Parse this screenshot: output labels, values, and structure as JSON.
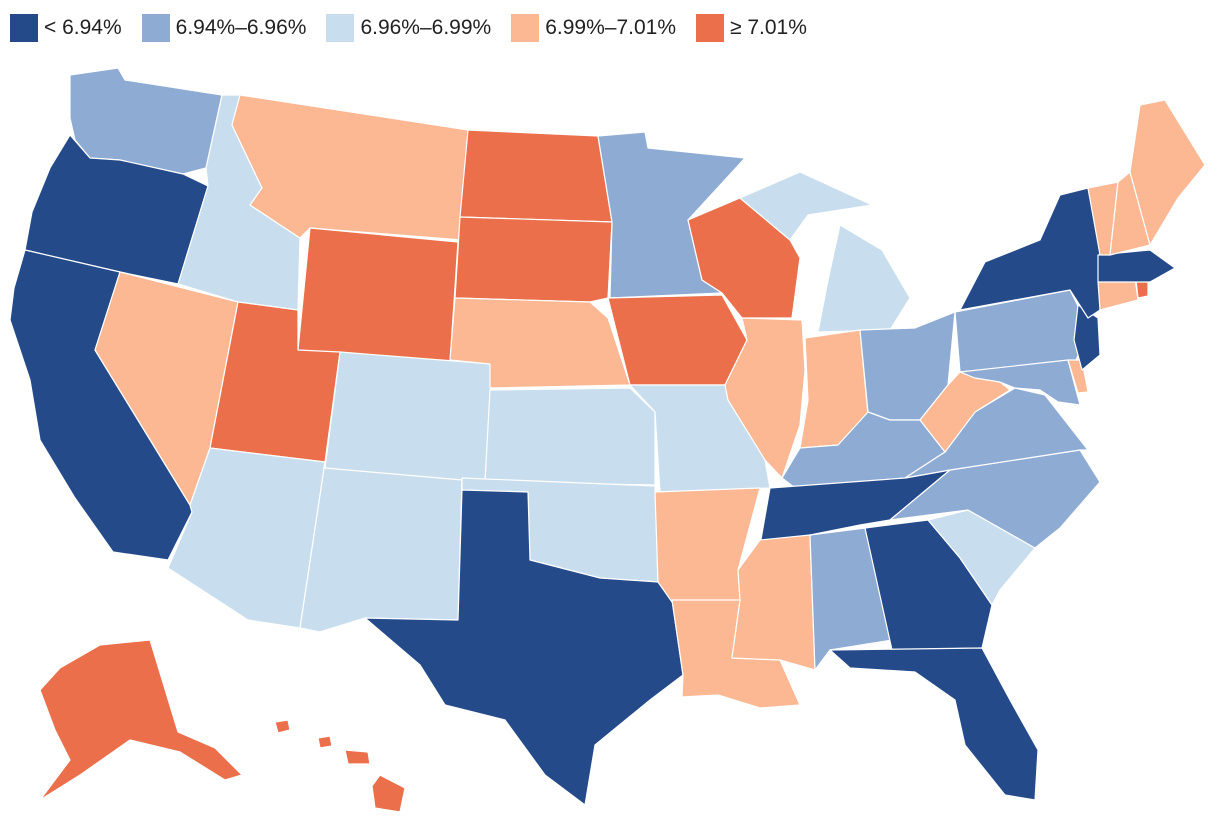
{
  "legend": [
    {
      "label": "< 6.94%",
      "color": "#244a8a"
    },
    {
      "label": "6.94%–6.96%",
      "color": "#8eabd3"
    },
    {
      "label": "6.96%–6.99%",
      "color": "#c8dded"
    },
    {
      "label": "6.99%–7.01%",
      "color": "#fcb793"
    },
    {
      "label": "≥ 7.01%",
      "color": "#ea6f4a"
    }
  ],
  "states": {
    "WA": 1,
    "OR": 0,
    "CA": 0,
    "NV": 3,
    "ID": 2,
    "MT": 3,
    "WY": 4,
    "UT": 4,
    "AZ": 2,
    "NM": 2,
    "CO": 2,
    "ND": 4,
    "SD": 4,
    "NE": 3,
    "KS": 2,
    "OK": 2,
    "TX": 0,
    "MN": 1,
    "IA": 4,
    "MO": 2,
    "AR": 3,
    "LA": 3,
    "WI": 4,
    "IL": 3,
    "MI": 2,
    "IN": 3,
    "OH": 1,
    "KY": 1,
    "TN": 0,
    "MS": 3,
    "AL": 1,
    "GA": 0,
    "FL": 0,
    "SC": 2,
    "NC": 1,
    "VA": 1,
    "WV": 3,
    "PA": 1,
    "NY": 0,
    "MD": 1,
    "DE": 3,
    "NJ": 0,
    "CT": 3,
    "RI": 4,
    "MA": 0,
    "VT": 3,
    "NH": 3,
    "ME": 3,
    "AK": 4,
    "HI": 4
  }
}
